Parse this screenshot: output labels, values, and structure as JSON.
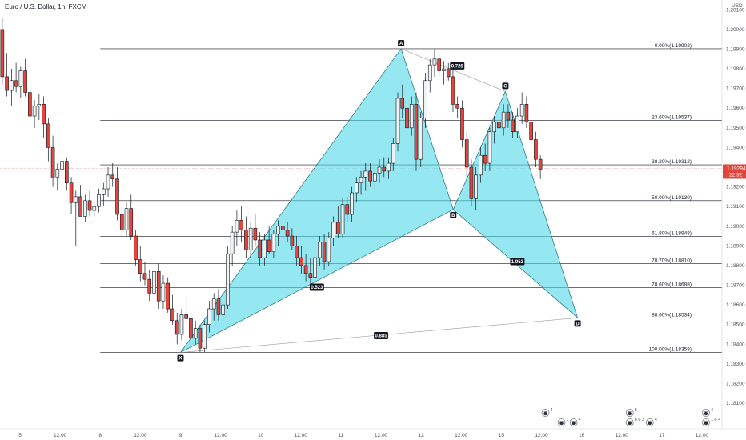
{
  "header": {
    "title": "Euro / U.S. Dollar, 1h, FXCM"
  },
  "colors": {
    "up": "#f0f3f3",
    "down": "#e0463c",
    "wick": "#131722",
    "pattern_fill": "#4fd8e8",
    "grid": "#131722",
    "price_line": "#f1a7a3",
    "price_tag": "#e0463c"
  },
  "chart_data": {
    "type": "candlestick",
    "title": "Euro / U.S. Dollar, 1h, FXCM",
    "currency": "USD",
    "ylim": [
      1.1797,
      1.2015
    ],
    "y_ticks": [
      "1.20100",
      "1.20000",
      "1.19900",
      "1.19800",
      "1.19700",
      "1.19600",
      "1.19500",
      "1.19400",
      "1.19300",
      "1.19200",
      "1.19100",
      "1.19000",
      "1.18900",
      "1.18800",
      "1.18700",
      "1.18600",
      "1.18500",
      "1.18400",
      "1.18300",
      "1.18200",
      "1.18100"
    ],
    "y_tick_values": [
      1.201,
      1.2,
      1.199,
      1.198,
      1.197,
      1.196,
      1.195,
      1.194,
      1.193,
      1.192,
      1.191,
      1.19,
      1.189,
      1.188,
      1.187,
      1.186,
      1.185,
      1.184,
      1.183,
      1.182,
      1.181
    ],
    "x_ticks": [
      {
        "label": "5",
        "pos": 5
      },
      {
        "label": "12:00",
        "pos": 15
      },
      {
        "label": "8",
        "pos": 25
      },
      {
        "label": "12:00",
        "pos": 35
      },
      {
        "label": "9",
        "pos": 45
      },
      {
        "label": "12:00",
        "pos": 55
      },
      {
        "label": "10",
        "pos": 65
      },
      {
        "label": "12:00",
        "pos": 75
      },
      {
        "label": "11",
        "pos": 85
      },
      {
        "label": "12:00",
        "pos": 95
      },
      {
        "label": "12",
        "pos": 105
      },
      {
        "label": "12:00",
        "pos": 115
      },
      {
        "label": "15",
        "pos": 125
      },
      {
        "label": "12:00",
        "pos": 135
      },
      {
        "label": "16",
        "pos": 145
      },
      {
        "label": "12:00",
        "pos": 155
      },
      {
        "label": "17",
        "pos": 165
      },
      {
        "label": "12:00",
        "pos": 175
      }
    ],
    "x_range": [
      0,
      180
    ],
    "current_price": {
      "value": 1.19294,
      "label": "1.19294",
      "countdown": "22:32"
    },
    "fib_levels": [
      {
        "label": "0.00%(1.19902)",
        "value": 1.19902
      },
      {
        "label": "23.60%(1.19537)",
        "value": 1.19537
      },
      {
        "label": "38.20%(1.19312)",
        "value": 1.19312
      },
      {
        "label": "50.00%(1.19130)",
        "value": 1.1913
      },
      {
        "label": "61.80%(1.18948)",
        "value": 1.18948
      },
      {
        "label": "70.70%(1.18810)",
        "value": 1.1881
      },
      {
        "label": "78.60%(1.18688)",
        "value": 1.18688
      },
      {
        "label": "88.60%(1.18534)",
        "value": 1.18534
      },
      {
        "label": "100.00%(1.18358)",
        "value": 1.18358
      }
    ],
    "fib_x_start": 25,
    "pattern": {
      "points": [
        {
          "label": "X",
          "x": 45,
          "y": 1.18358
        },
        {
          "label": "A",
          "x": 100,
          "y": 1.19902
        },
        {
          "label": "B",
          "x": 113,
          "y": 1.19085
        },
        {
          "label": "C",
          "x": 126,
          "y": 1.19685
        },
        {
          "label": "D",
          "x": 144,
          "y": 1.18534
        }
      ],
      "ratios": [
        {
          "label": "0.523",
          "x": 79,
          "y": 1.1869
        },
        {
          "label": "0.728",
          "x": 114,
          "y": 1.19815
        },
        {
          "label": "1.952",
          "x": 129,
          "y": 1.1882
        },
        {
          "label": "0.885",
          "x": 95,
          "y": 1.18444
        }
      ]
    },
    "events": [
      {
        "label": "4",
        "x": 136,
        "row": 1
      },
      {
        "label": "1 2",
        "x": 140,
        "row": 2
      },
      {
        "label": "4",
        "x": 143,
        "row": 2
      },
      {
        "label": "5",
        "x": 157,
        "row": 1
      },
      {
        "label": "6 6 3",
        "x": 157,
        "row": 2
      },
      {
        "label": "4",
        "x": 162,
        "row": 2
      },
      {
        "label": "4",
        "x": 176,
        "row": 1
      },
      {
        "label": "1 6 4",
        "x": 176,
        "row": 2
      }
    ],
    "candles": [
      [
        1.2,
        1.2006,
        1.1972,
        1.1976
      ],
      [
        1.1976,
        1.1988,
        1.1966,
        1.1969
      ],
      [
        1.1969,
        1.198,
        1.1961,
        1.1974
      ],
      [
        1.1974,
        1.1983,
        1.1968,
        1.1971
      ],
      [
        1.1971,
        1.1981,
        1.1965,
        1.1979
      ],
      [
        1.1979,
        1.1985,
        1.1966,
        1.1968
      ],
      [
        1.1968,
        1.1972,
        1.195,
        1.1956
      ],
      [
        1.1956,
        1.1964,
        1.195,
        1.1961
      ],
      [
        1.1961,
        1.1967,
        1.1954,
        1.1962
      ],
      [
        1.1962,
        1.1966,
        1.1945,
        1.1952
      ],
      [
        1.1952,
        1.1955,
        1.1933,
        1.194
      ],
      [
        1.194,
        1.1946,
        1.192,
        1.1925
      ],
      [
        1.1925,
        1.1932,
        1.1918,
        1.1929
      ],
      [
        1.1929,
        1.194,
        1.1925,
        1.1933
      ],
      [
        1.1933,
        1.1935,
        1.1918,
        1.1922
      ],
      [
        1.1922,
        1.1925,
        1.1906,
        1.1912
      ],
      [
        1.1912,
        1.1918,
        1.189,
        1.1915
      ],
      [
        1.1915,
        1.1921,
        1.1905,
        1.1905
      ],
      [
        1.1905,
        1.1916,
        1.1902,
        1.1913
      ],
      [
        1.1913,
        1.1918,
        1.1905,
        1.1908
      ],
      [
        1.1908,
        1.1912,
        1.1905,
        1.191
      ],
      [
        1.191,
        1.1919,
        1.1907,
        1.1916
      ],
      [
        1.1916,
        1.1922,
        1.191,
        1.1919
      ],
      [
        1.1919,
        1.193,
        1.1915,
        1.1926
      ],
      [
        1.1926,
        1.1932,
        1.192,
        1.1924
      ],
      [
        1.1924,
        1.193,
        1.1903,
        1.1906
      ],
      [
        1.1906,
        1.191,
        1.1895,
        1.1898
      ],
      [
        1.1898,
        1.1912,
        1.1895,
        1.1909
      ],
      [
        1.1909,
        1.1916,
        1.1893,
        1.1895
      ],
      [
        1.1895,
        1.1898,
        1.188,
        1.1883
      ],
      [
        1.1883,
        1.189,
        1.1872,
        1.1876
      ],
      [
        1.1876,
        1.1882,
        1.187,
        1.1873
      ],
      [
        1.1873,
        1.1878,
        1.1862,
        1.1866
      ],
      [
        1.1866,
        1.188,
        1.1864,
        1.1877
      ],
      [
        1.1877,
        1.1881,
        1.1858,
        1.1862
      ],
      [
        1.1862,
        1.1875,
        1.1858,
        1.1871
      ],
      [
        1.1871,
        1.1874,
        1.1856,
        1.1858
      ],
      [
        1.1858,
        1.1865,
        1.185,
        1.1852
      ],
      [
        1.1852,
        1.1856,
        1.184,
        1.1845
      ],
      [
        1.1845,
        1.1858,
        1.1842,
        1.1855
      ],
      [
        1.1855,
        1.1864,
        1.185,
        1.1853
      ],
      [
        1.1853,
        1.1856,
        1.184,
        1.1843
      ],
      [
        1.1843,
        1.1852,
        1.184,
        1.1848
      ],
      [
        1.1848,
        1.185,
        1.1836,
        1.1838
      ],
      [
        1.1838,
        1.1852,
        1.1836,
        1.185
      ],
      [
        1.185,
        1.1862,
        1.1846,
        1.1858
      ],
      [
        1.1858,
        1.1866,
        1.1852,
        1.1863
      ],
      [
        1.1863,
        1.1868,
        1.1852,
        1.1855
      ],
      [
        1.1855,
        1.1862,
        1.185,
        1.186
      ],
      [
        1.186,
        1.189,
        1.1858,
        1.1886
      ],
      [
        1.1886,
        1.19,
        1.188,
        1.1897
      ],
      [
        1.1897,
        1.1908,
        1.189,
        1.1903
      ],
      [
        1.1903,
        1.191,
        1.1892,
        1.1898
      ],
      [
        1.1898,
        1.1905,
        1.1884,
        1.1888
      ],
      [
        1.1888,
        1.1902,
        1.1884,
        1.1899
      ],
      [
        1.1899,
        1.1906,
        1.189,
        1.1893
      ],
      [
        1.1893,
        1.1897,
        1.188,
        1.1884
      ],
      [
        1.1884,
        1.1896,
        1.188,
        1.1893
      ],
      [
        1.1893,
        1.19,
        1.1886,
        1.1887
      ],
      [
        1.1887,
        1.1898,
        1.1884,
        1.1896
      ],
      [
        1.1896,
        1.1903,
        1.189,
        1.19
      ],
      [
        1.19,
        1.1904,
        1.1894,
        1.1898
      ],
      [
        1.1898,
        1.1902,
        1.1892,
        1.1895
      ],
      [
        1.1895,
        1.1899,
        1.1888,
        1.189
      ],
      [
        1.189,
        1.1895,
        1.188,
        1.1884
      ],
      [
        1.1884,
        1.189,
        1.1876,
        1.188
      ],
      [
        1.188,
        1.1886,
        1.1872,
        1.1876
      ],
      [
        1.1876,
        1.1884,
        1.187,
        1.1874
      ],
      [
        1.1874,
        1.1886,
        1.187,
        1.1884
      ],
      [
        1.1884,
        1.1895,
        1.188,
        1.1892
      ],
      [
        1.1892,
        1.1896,
        1.1878,
        1.1882
      ],
      [
        1.1882,
        1.1897,
        1.188,
        1.1894
      ],
      [
        1.1894,
        1.1905,
        1.189,
        1.1902
      ],
      [
        1.1902,
        1.191,
        1.1894,
        1.1896
      ],
      [
        1.1896,
        1.1914,
        1.1894,
        1.1911
      ],
      [
        1.1911,
        1.1915,
        1.1902,
        1.1906
      ],
      [
        1.1906,
        1.192,
        1.1902,
        1.1917
      ],
      [
        1.1917,
        1.1925,
        1.1912,
        1.1922
      ],
      [
        1.1922,
        1.1928,
        1.1916,
        1.1925
      ],
      [
        1.1925,
        1.1932,
        1.1918,
        1.1928
      ],
      [
        1.1928,
        1.1932,
        1.192,
        1.1923
      ],
      [
        1.1923,
        1.193,
        1.1918,
        1.1927
      ],
      [
        1.1927,
        1.1934,
        1.1922,
        1.193
      ],
      [
        1.193,
        1.1935,
        1.1925,
        1.1928
      ],
      [
        1.1928,
        1.1935,
        1.1924,
        1.1932
      ],
      [
        1.1932,
        1.1945,
        1.1928,
        1.1942
      ],
      [
        1.1942,
        1.1968,
        1.1938,
        1.1965
      ],
      [
        1.1965,
        1.1972,
        1.1955,
        1.196
      ],
      [
        1.196,
        1.1966,
        1.1946,
        1.195
      ],
      [
        1.195,
        1.1966,
        1.1946,
        1.1962
      ],
      [
        1.1962,
        1.1968,
        1.1928,
        1.1934
      ],
      [
        1.1934,
        1.1958,
        1.193,
        1.1955
      ],
      [
        1.1955,
        1.1978,
        1.195,
        1.1974
      ],
      [
        1.1974,
        1.1985,
        1.1968,
        1.1982
      ],
      [
        1.1982,
        1.199,
        1.1976,
        1.1985
      ],
      [
        1.1985,
        1.1988,
        1.1976,
        1.1979
      ],
      [
        1.1979,
        1.1984,
        1.1972,
        1.198
      ],
      [
        1.198,
        1.1983,
        1.1974,
        1.1976
      ],
      [
        1.1976,
        1.198,
        1.1958,
        1.1962
      ],
      [
        1.1962,
        1.1966,
        1.1955,
        1.196
      ],
      [
        1.196,
        1.1964,
        1.194,
        1.1944
      ],
      [
        1.1944,
        1.1948,
        1.1925,
        1.193
      ],
      [
        1.193,
        1.1934,
        1.191,
        1.1914
      ],
      [
        1.1914,
        1.193,
        1.1908,
        1.1926
      ],
      [
        1.1926,
        1.194,
        1.1922,
        1.1936
      ],
      [
        1.1936,
        1.1942,
        1.1928,
        1.1932
      ],
      [
        1.1932,
        1.195,
        1.1928,
        1.1948
      ],
      [
        1.1948,
        1.1956,
        1.1942,
        1.1953
      ],
      [
        1.1953,
        1.196,
        1.1948,
        1.195
      ],
      [
        1.195,
        1.1962,
        1.1946,
        1.1958
      ],
      [
        1.1958,
        1.1962,
        1.195,
        1.1954
      ],
      [
        1.1954,
        1.1958,
        1.1945,
        1.1948
      ],
      [
        1.1948,
        1.196,
        1.1945,
        1.1956
      ],
      [
        1.1956,
        1.1968,
        1.1952,
        1.1962
      ],
      [
        1.1962,
        1.1966,
        1.195,
        1.1953
      ],
      [
        1.1953,
        1.1957,
        1.194,
        1.1944
      ],
      [
        1.1944,
        1.1948,
        1.193,
        1.1934
      ],
      [
        1.1934,
        1.1936,
        1.1924,
        1.1929
      ]
    ]
  }
}
